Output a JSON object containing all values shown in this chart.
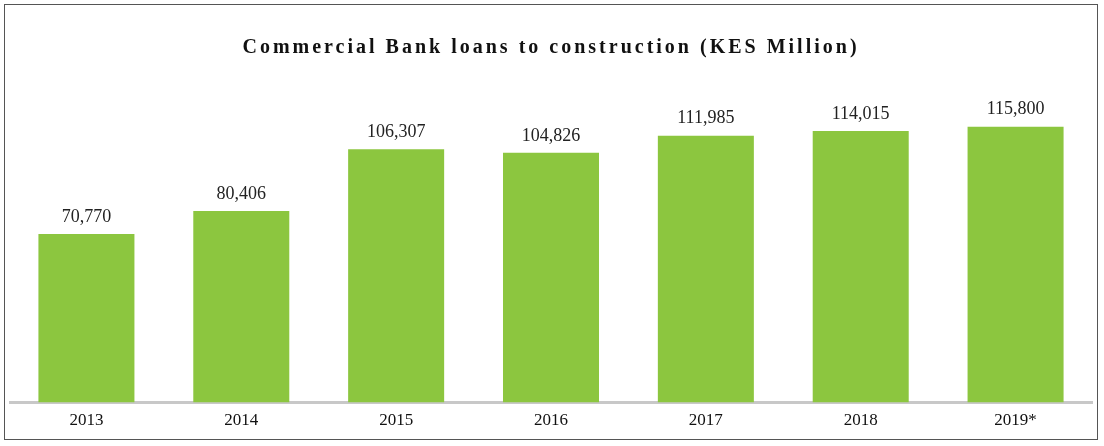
{
  "chart_data": {
    "type": "bar",
    "title": "Commercial Bank loans to construction (KES Million)",
    "categories": [
      "2013",
      "2014",
      "2015",
      "2016",
      "2017",
      "2018",
      "2019*"
    ],
    "values": [
      70770,
      80406,
      106307,
      104826,
      111985,
      114015,
      115800
    ],
    "value_labels": [
      "70,770",
      "80,406",
      "106,307",
      "104,826",
      "111,985",
      "114,015",
      "115,800"
    ],
    "color": "#8cc63f",
    "tick_labels": "x"
  }
}
